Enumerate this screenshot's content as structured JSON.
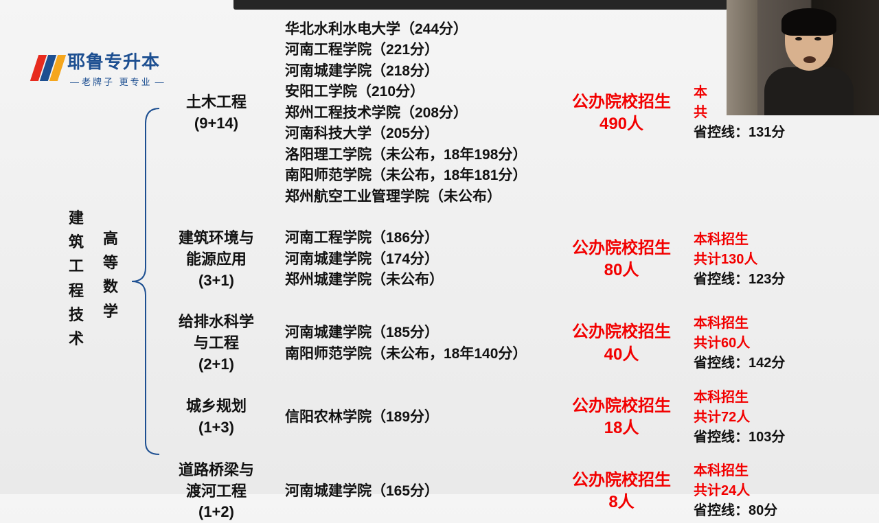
{
  "logo": {
    "title": "耶鲁专升本",
    "subtitle": "老牌子 更专业",
    "colors": [
      "#e72b1e",
      "#1d4f91",
      "#f5a61d"
    ]
  },
  "vertical": {
    "main": "建筑工程技术",
    "sub": "高等数学"
  },
  "rows": [
    {
      "major": "土木工程\n(9+14)",
      "schools": "华北水利水电大学（244分）\n河南工程学院（221分）\n河南城建学院（218分）\n安阳工学院（210分）\n郑州工程技术学院（208分）\n河南科技大学（205分）\n洛阳理工学院（未公布，18年198分）\n南阳师范学院（未公布，18年181分）\n郑州航空工业管理学院（未公布）",
      "red": "公办院校招生\n490人",
      "side_red": "本\n共",
      "side_blk": "省控线：131分"
    },
    {
      "major": "建筑环境与\n能源应用\n(3+1)",
      "schools": "河南工程学院（186分）\n河南城建学院（174分）\n郑州城建学院（未公布）",
      "red": "公办院校招生\n80人",
      "side_red": "本科招生\n共计130人",
      "side_blk": "省控线：123分"
    },
    {
      "major": "给排水科学\n与工程\n(2+1)",
      "schools": "河南城建学院（185分）\n南阳师范学院（未公布，18年140分）",
      "red": "公办院校招生\n40人",
      "side_red": "本科招生\n共计60人",
      "side_blk": "省控线：142分"
    },
    {
      "major": "城乡规划\n(1+3)",
      "schools": "信阳农林学院（189分）",
      "red": "公办院校招生\n18人",
      "side_red": "本科招生\n共计72人",
      "side_blk": "省控线：103分"
    },
    {
      "major": "道路桥梁与\n渡河工程\n(1+2)",
      "schools": "河南城建学院（165分）",
      "red": "公办院校招生\n8人",
      "side_red": "本科招生\n共计24人",
      "side_blk": "省控线：80分"
    }
  ]
}
